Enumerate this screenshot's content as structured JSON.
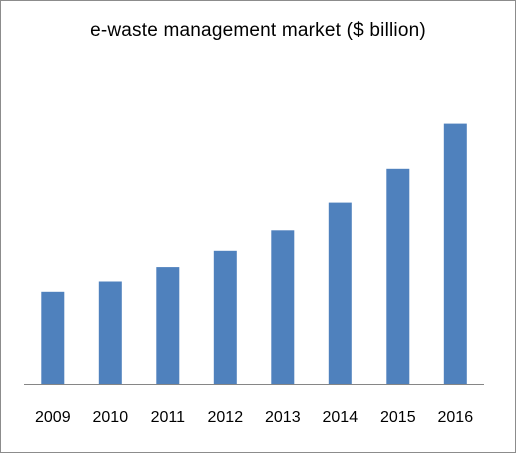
{
  "chart_data": {
    "type": "bar",
    "title": "e-waste management market ($ billion)",
    "xlabel": "",
    "ylabel": "",
    "categories": [
      "2009",
      "2010",
      "2011",
      "2012",
      "2013",
      "2014",
      "2015",
      "2016"
    ],
    "values": [
      9.0,
      10.0,
      11.4,
      13.0,
      15.0,
      17.7,
      21.0,
      25.4
    ],
    "ylim": [
      0,
      28
    ],
    "grid": false,
    "legend": "none",
    "colors": {
      "bar": "#4f81bd",
      "axis": "#868686",
      "frame": "#8c8c8c"
    }
  }
}
